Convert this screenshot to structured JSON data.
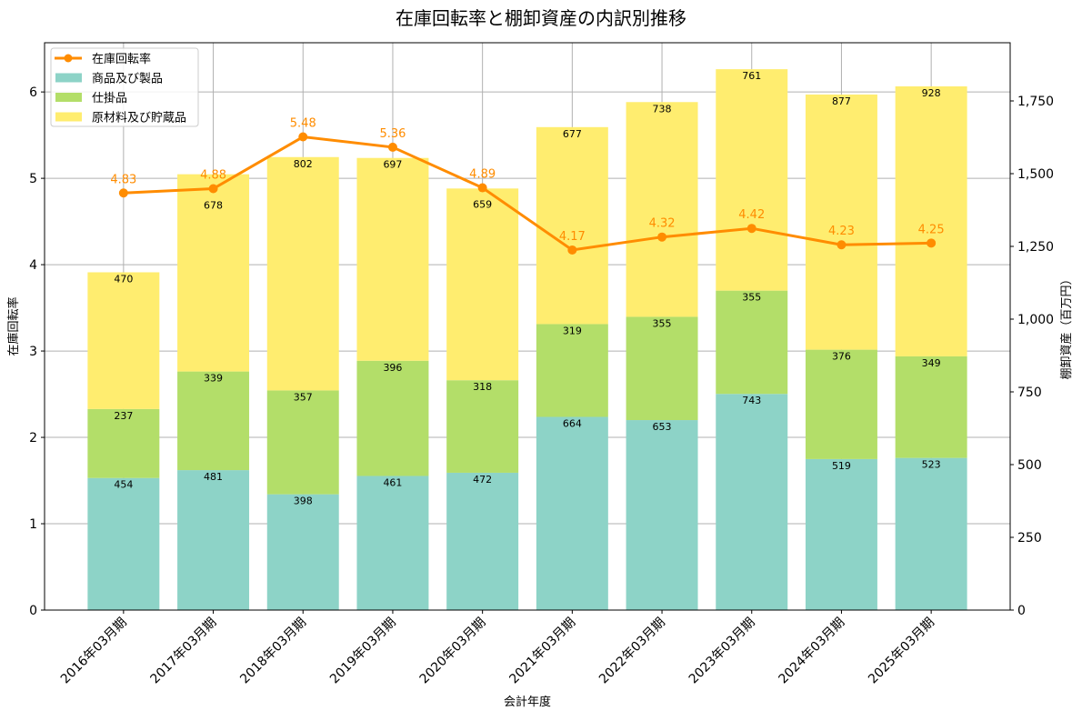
{
  "chart_data": {
    "type": "bar",
    "title": "在庫回転率と棚卸資産の内訳別推移",
    "xlabel": "会計年度",
    "ylabel": "在庫回転率",
    "ylabel_right": "棚卸資産（百万円）",
    "categories": [
      "2016年03月期",
      "2017年03月期",
      "2018年03月期",
      "2019年03月期",
      "2020年03月期",
      "2021年03月期",
      "2022年03月期",
      "2023年03月期",
      "2024年03月期",
      "2025年03月期"
    ],
    "stacked": true,
    "series": [
      {
        "name": "商品及び製品",
        "axis": "right",
        "type": "bar",
        "color": "#8dd3c7",
        "values": [
          454,
          481,
          398,
          461,
          472,
          664,
          653,
          743,
          519,
          523
        ]
      },
      {
        "name": "仕掛品",
        "axis": "right",
        "type": "bar",
        "color": "#b3de69",
        "values": [
          237,
          339,
          357,
          396,
          318,
          319,
          355,
          355,
          376,
          349
        ]
      },
      {
        "name": "原材料及び貯蔵品",
        "axis": "right",
        "type": "bar",
        "color": "#ffed6f",
        "values": [
          470,
          678,
          802,
          697,
          659,
          677,
          738,
          761,
          877,
          928
        ]
      },
      {
        "name": "在庫回転率",
        "axis": "left",
        "type": "line",
        "color": "#ff8c00",
        "values": [
          4.83,
          4.88,
          5.48,
          5.36,
          4.89,
          4.17,
          4.32,
          4.42,
          4.23,
          4.25
        ]
      }
    ],
    "ylim": [
      0,
      6.57
    ],
    "yticks": [
      0,
      1,
      2,
      3,
      4,
      5,
      6
    ],
    "ylim_right": [
      0,
      1950
    ],
    "yticks_right": [
      "0",
      "250",
      "500",
      "750",
      "1,000",
      "1,250",
      "1,500",
      "1,750"
    ],
    "legend_position": "top-left",
    "grid": true
  }
}
